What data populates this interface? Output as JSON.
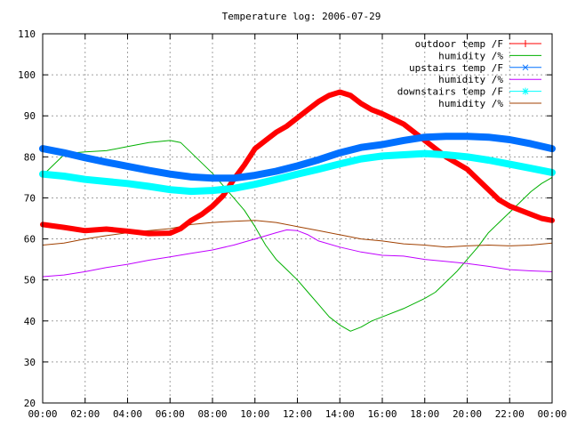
{
  "chart_data": {
    "type": "line",
    "title": "Temperature log: 2006-07-29",
    "xlabel": "",
    "ylabel": "",
    "xlim": [
      0,
      24
    ],
    "ylim": [
      20,
      110
    ],
    "grid": true,
    "legend_position": "top-right",
    "x_tick_labels": [
      "00:00",
      "02:00",
      "04:00",
      "06:00",
      "08:00",
      "10:00",
      "12:00",
      "14:00",
      "16:00",
      "18:00",
      "20:00",
      "22:00",
      "00:00"
    ],
    "y_tick_labels": [
      "20",
      "30",
      "40",
      "50",
      "60",
      "70",
      "80",
      "90",
      "100",
      "110"
    ],
    "series": [
      {
        "name": "outdoor temp /F",
        "color": "#ff0000",
        "marker": "plus",
        "line_width": 6,
        "x": [
          0,
          1,
          2,
          3,
          4,
          5,
          6,
          6.5,
          7,
          7.5,
          8,
          8.5,
          9,
          9.5,
          10,
          10.5,
          11,
          11.5,
          12,
          12.5,
          13,
          13.5,
          14,
          14.5,
          15,
          15.5,
          16,
          17,
          18,
          19,
          20,
          20.5,
          21,
          21.5,
          22,
          22.5,
          23,
          23.5,
          24
        ],
        "y": [
          63.5,
          62.8,
          62.0,
          62.4,
          61.9,
          61.3,
          61.4,
          62.5,
          64.5,
          66.0,
          68.0,
          70.5,
          74.5,
          78.0,
          82.0,
          84.0,
          86.0,
          87.5,
          89.5,
          91.5,
          93.5,
          95.0,
          95.8,
          95.0,
          93.0,
          91.5,
          90.5,
          88.0,
          84.0,
          80.0,
          77.0,
          74.5,
          72.0,
          69.5,
          68.0,
          67.0,
          66.0,
          65.0,
          64.5
        ]
      },
      {
        "name": "humidity /%",
        "color": "#00b000",
        "marker": "none",
        "line_width": 1,
        "x": [
          0,
          0.5,
          1,
          1.5,
          2,
          3,
          4,
          5,
          6,
          6.5,
          7,
          7.5,
          8,
          8.5,
          9,
          9.5,
          10,
          10.5,
          11,
          11.5,
          12,
          12.5,
          13,
          13.5,
          14,
          14.5,
          15,
          15.5,
          16,
          17,
          18,
          18.5,
          19,
          19.5,
          20,
          20.5,
          21,
          21.5,
          22,
          22.5,
          23,
          23.5,
          24
        ],
        "y": [
          75.5,
          78.0,
          80.5,
          81.0,
          81.2,
          81.5,
          82.5,
          83.5,
          84.0,
          83.5,
          81.0,
          78.5,
          76.0,
          73.0,
          70.0,
          67.0,
          63.0,
          58.5,
          55.0,
          52.5,
          50.0,
          47.0,
          44.0,
          41.0,
          39.0,
          37.5,
          38.5,
          40.0,
          41.0,
          43.0,
          45.5,
          47.0,
          49.5,
          52.0,
          55.0,
          58.0,
          61.5,
          64.0,
          66.5,
          69.0,
          71.5,
          73.5,
          75.0
        ]
      },
      {
        "name": "upstairs temp /F",
        "color": "#0070ff",
        "marker": "cross",
        "line_width": 8,
        "x": [
          0,
          1,
          2,
          3,
          4,
          5,
          6,
          7,
          8,
          9,
          10,
          11,
          12,
          13,
          14,
          15,
          16,
          17,
          18,
          19,
          20,
          21,
          22,
          23,
          24
        ],
        "y": [
          82.0,
          81.0,
          79.8,
          78.7,
          77.7,
          76.7,
          75.8,
          75.1,
          74.8,
          74.8,
          75.5,
          76.5,
          77.8,
          79.3,
          81.0,
          82.3,
          83.0,
          84.0,
          84.8,
          85.0,
          85.0,
          84.8,
          84.2,
          83.2,
          82.0
        ]
      },
      {
        "name": "humidity /%",
        "color": "#c000ff",
        "marker": "none",
        "line_width": 1,
        "x": [
          0,
          1,
          2,
          3,
          4,
          5,
          6,
          7,
          8,
          9,
          10,
          11,
          11.5,
          12,
          12.5,
          13,
          14,
          15,
          16,
          17,
          18,
          19,
          20,
          21,
          22,
          23,
          24
        ],
        "y": [
          50.8,
          51.2,
          52.0,
          53.0,
          53.8,
          54.8,
          55.6,
          56.5,
          57.3,
          58.5,
          60.0,
          61.5,
          62.2,
          62.0,
          61.0,
          59.5,
          58.0,
          56.8,
          56.0,
          55.8,
          55.0,
          54.5,
          54.0,
          53.3,
          52.5,
          52.2,
          52.0
        ]
      },
      {
        "name": "downstairs temp /F",
        "color": "#00ffff",
        "marker": "star",
        "line_width": 8,
        "x": [
          0,
          1,
          2,
          3,
          4,
          5,
          6,
          7,
          8,
          9,
          10,
          11,
          12,
          13,
          14,
          15,
          16,
          17,
          18,
          19,
          20,
          21,
          22,
          23,
          24
        ],
        "y": [
          75.8,
          75.3,
          74.5,
          74.0,
          73.5,
          72.8,
          72.0,
          71.6,
          71.8,
          72.3,
          73.3,
          74.5,
          75.8,
          77.0,
          78.3,
          79.5,
          80.2,
          80.5,
          80.8,
          80.5,
          80.0,
          79.2,
          78.2,
          77.2,
          76.2
        ]
      },
      {
        "name": "humidity /%",
        "color": "#a04000",
        "marker": "none",
        "line_width": 1,
        "x": [
          0,
          1,
          2,
          3,
          4,
          5,
          6,
          7,
          8,
          9,
          10,
          11,
          12,
          13,
          14,
          15,
          16,
          17,
          18,
          19,
          20,
          21,
          22,
          23,
          24
        ],
        "y": [
          58.5,
          59.0,
          60.0,
          60.8,
          61.5,
          62.0,
          62.5,
          63.5,
          64.0,
          64.3,
          64.5,
          64.0,
          63.0,
          62.0,
          61.0,
          60.0,
          59.5,
          58.8,
          58.5,
          58.0,
          58.3,
          58.5,
          58.3,
          58.5,
          59.0
        ]
      }
    ]
  }
}
